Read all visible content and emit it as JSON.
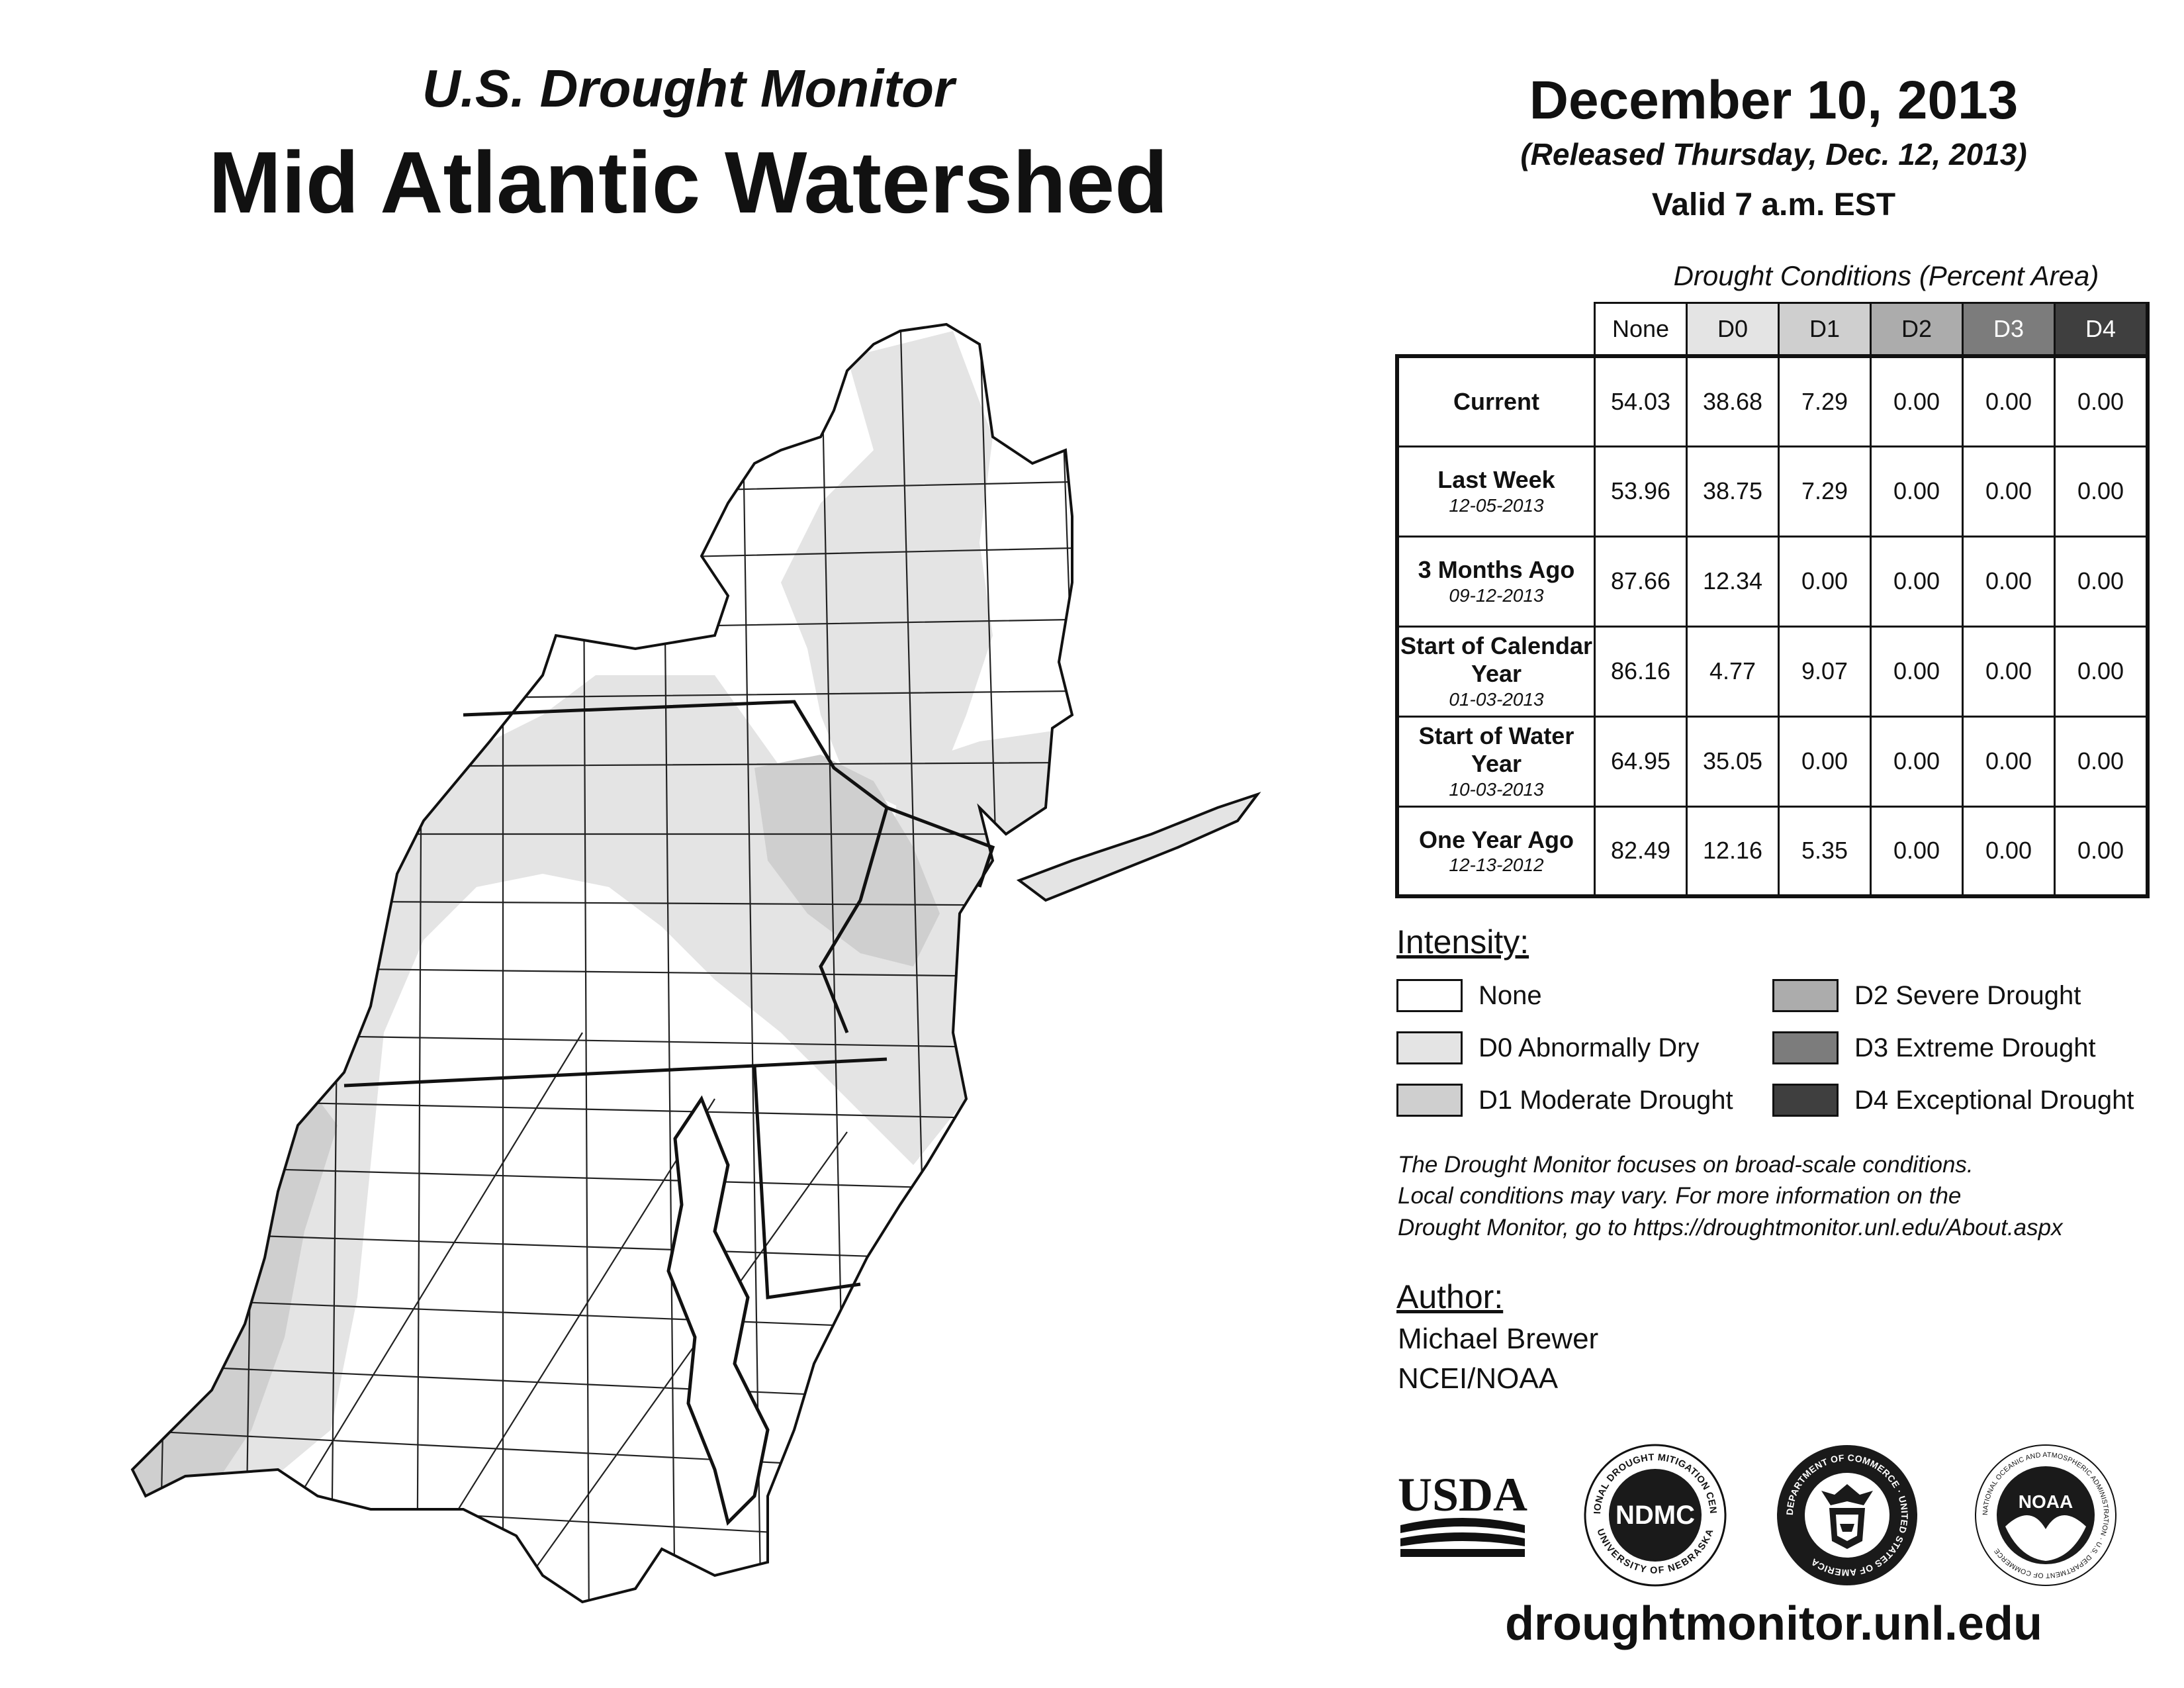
{
  "header": {
    "subtitle": "U.S. Drought Monitor",
    "title": "Mid Atlantic Watershed",
    "date": "December 10, 2013",
    "released": "(Released Thursday, Dec. 12, 2013)",
    "valid": "Valid 7 a.m. EST"
  },
  "colors": {
    "none": "#ffffff",
    "d0": "#e4e4e4",
    "d1": "#cfcfcf",
    "d2": "#acacac",
    "d3": "#7c7c7c",
    "d4": "#3f3f3f"
  },
  "table": {
    "caption": "Drought Conditions (Percent Area)",
    "columns": [
      "None",
      "D0",
      "D1",
      "D2",
      "D3",
      "D4"
    ],
    "rows": [
      {
        "label": "Current",
        "date": "",
        "values": [
          "54.03",
          "38.68",
          "7.29",
          "0.00",
          "0.00",
          "0.00"
        ]
      },
      {
        "label": "Last Week",
        "date": "12-05-2013",
        "values": [
          "53.96",
          "38.75",
          "7.29",
          "0.00",
          "0.00",
          "0.00"
        ]
      },
      {
        "label": "3 Months Ago",
        "date": "09-12-2013",
        "values": [
          "87.66",
          "12.34",
          "0.00",
          "0.00",
          "0.00",
          "0.00"
        ]
      },
      {
        "label": "Start of Calendar Year",
        "date": "01-03-2013",
        "values": [
          "86.16",
          "4.77",
          "9.07",
          "0.00",
          "0.00",
          "0.00"
        ]
      },
      {
        "label": "Start of Water Year",
        "date": "10-03-2013",
        "values": [
          "64.95",
          "35.05",
          "0.00",
          "0.00",
          "0.00",
          "0.00"
        ]
      },
      {
        "label": "One Year Ago",
        "date": "12-13-2012",
        "values": [
          "82.49",
          "12.16",
          "5.35",
          "0.00",
          "0.00",
          "0.00"
        ]
      }
    ]
  },
  "legend": {
    "title": "Intensity:",
    "items": [
      {
        "label": "None",
        "color": "#ffffff"
      },
      {
        "label": "D0 Abnormally Dry",
        "color": "#e4e4e4"
      },
      {
        "label": "D1 Moderate Drought",
        "color": "#cfcfcf"
      },
      {
        "label": "D2 Severe Drought",
        "color": "#acacac"
      },
      {
        "label": "D3 Extreme Drought",
        "color": "#7c7c7c"
      },
      {
        "label": "D4 Exceptional Drought",
        "color": "#3f3f3f"
      }
    ]
  },
  "note": {
    "line1": "The Drought Monitor focuses on broad-scale conditions.",
    "line2": "Local conditions may vary. For more information on the",
    "line3": "Drought Monitor, go to https://droughtmonitor.unl.edu/About.aspx"
  },
  "author": {
    "title": "Author:",
    "name": "Michael Brewer",
    "org": "NCEI/NOAA"
  },
  "logos": {
    "usda": "USDA",
    "ndmc": "NDMC",
    "ndmc_ring_top": "NATIONAL DROUGHT MITIGATION CENTER",
    "ndmc_ring_bottom": "UNIVERSITY OF NEBRASKA",
    "doc_ring": "DEPARTMENT OF COMMERCE · UNITED STATES OF AMERICA",
    "noaa": "NOAA",
    "noaa_ring": "NATIONAL OCEANIC AND ATMOSPHERIC ADMINISTRATION · U.S. DEPARTMENT OF COMMERCE"
  },
  "website": "droughtmonitor.unl.edu"
}
